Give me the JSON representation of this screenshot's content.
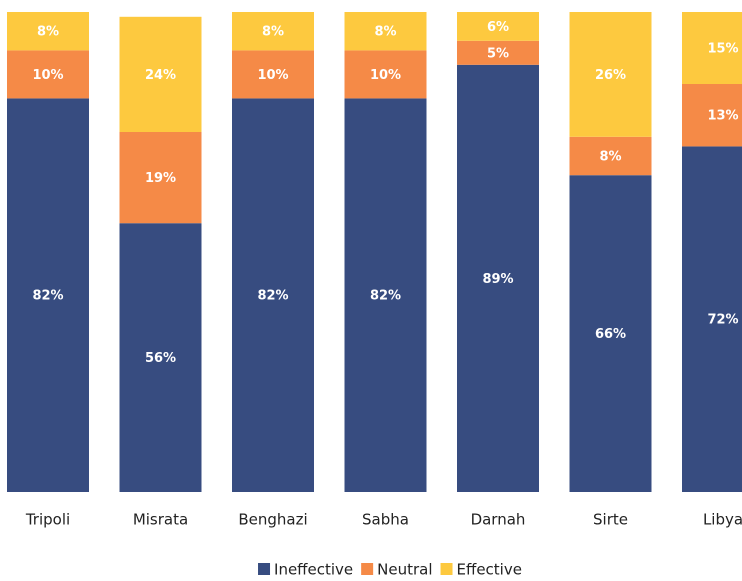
{
  "chart_data": {
    "type": "stacked_bar",
    "categories": [
      "Tripoli",
      "Misrata",
      "Benghazi",
      "Sabha",
      "Darnah",
      "Sirte",
      "Libya"
    ],
    "series": [
      {
        "name": "Ineffective",
        "color": "#374c80",
        "values": [
          82,
          56,
          82,
          82,
          89,
          66,
          72
        ],
        "value_labels": [
          "82%",
          "56%",
          "82%",
          "82%",
          "89%",
          "66%",
          "72%"
        ]
      },
      {
        "name": "Neutral",
        "color": "#f58a47",
        "values": [
          10,
          19,
          10,
          10,
          5,
          8,
          13
        ],
        "value_labels": [
          "10%",
          "19%",
          "10%",
          "10%",
          "5%",
          "8%",
          "13%"
        ]
      },
      {
        "name": "Effective",
        "color": "#fdc93f",
        "values": [
          8,
          24,
          8,
          8,
          6,
          26,
          15
        ],
        "value_labels": [
          "8%",
          "24%",
          "8%",
          "8%",
          "6%",
          "26%",
          "15%"
        ]
      }
    ],
    "ylim": [
      0,
      100
    ],
    "legend": "bottom"
  }
}
